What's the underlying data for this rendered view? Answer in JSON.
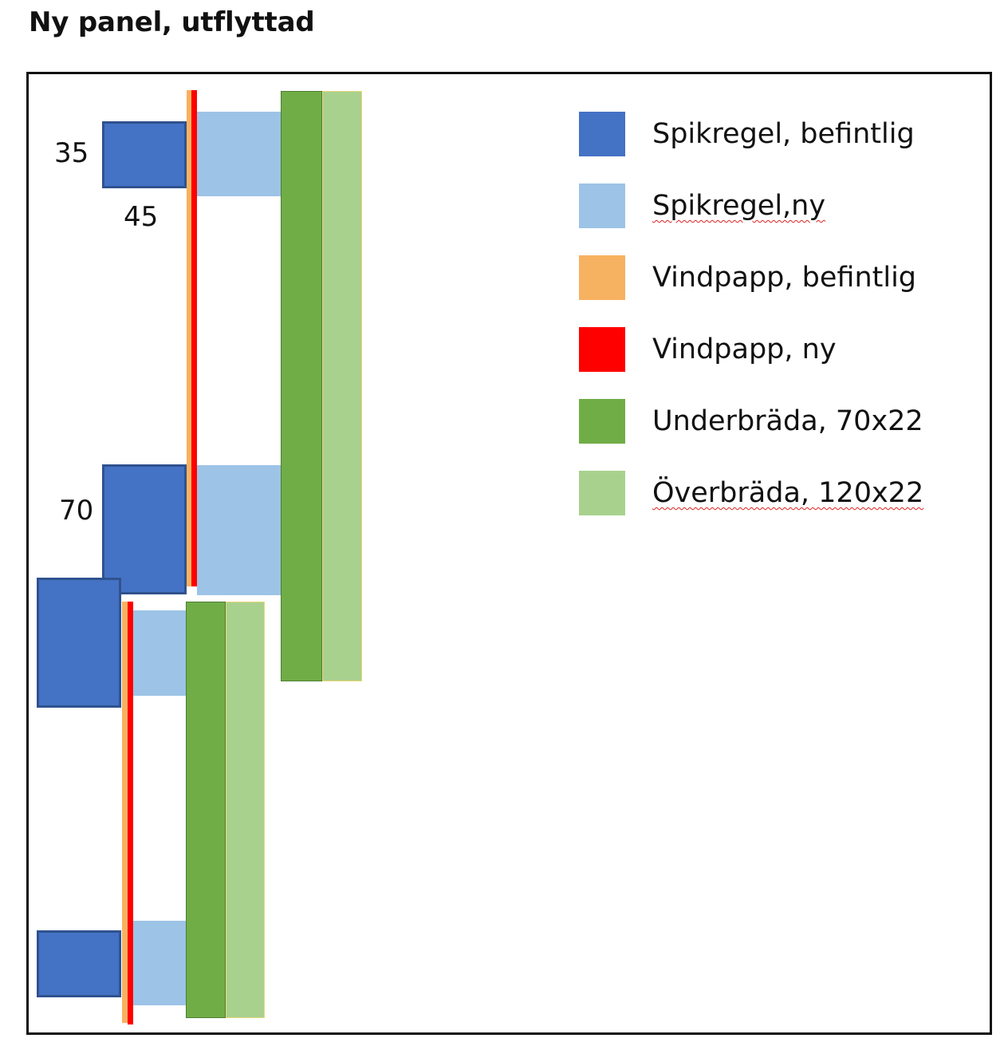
{
  "title": "Ny panel, utflyttad",
  "dimensions": {
    "stud_top_width": "35",
    "stud_top_depth": "45",
    "stud_lower_width": "70"
  },
  "legend": [
    {
      "label": "Spikregel, befintlig",
      "color": "#4472c4",
      "spellcheck": false
    },
    {
      "label": "Spikregel,ny",
      "color": "#9dc3e6",
      "spellcheck": true
    },
    {
      "label": "Vindpapp, befintlig",
      "color": "#f7b261",
      "spellcheck": false
    },
    {
      "label": "Vindpapp, ny",
      "color": "#ff0000",
      "spellcheck": false
    },
    {
      "label": "Underbräda, 70x22",
      "color": "#70ad47",
      "spellcheck": false
    },
    {
      "label": "Överbräda, 120x22",
      "color": "#a9d18e",
      "spellcheck": true
    }
  ]
}
